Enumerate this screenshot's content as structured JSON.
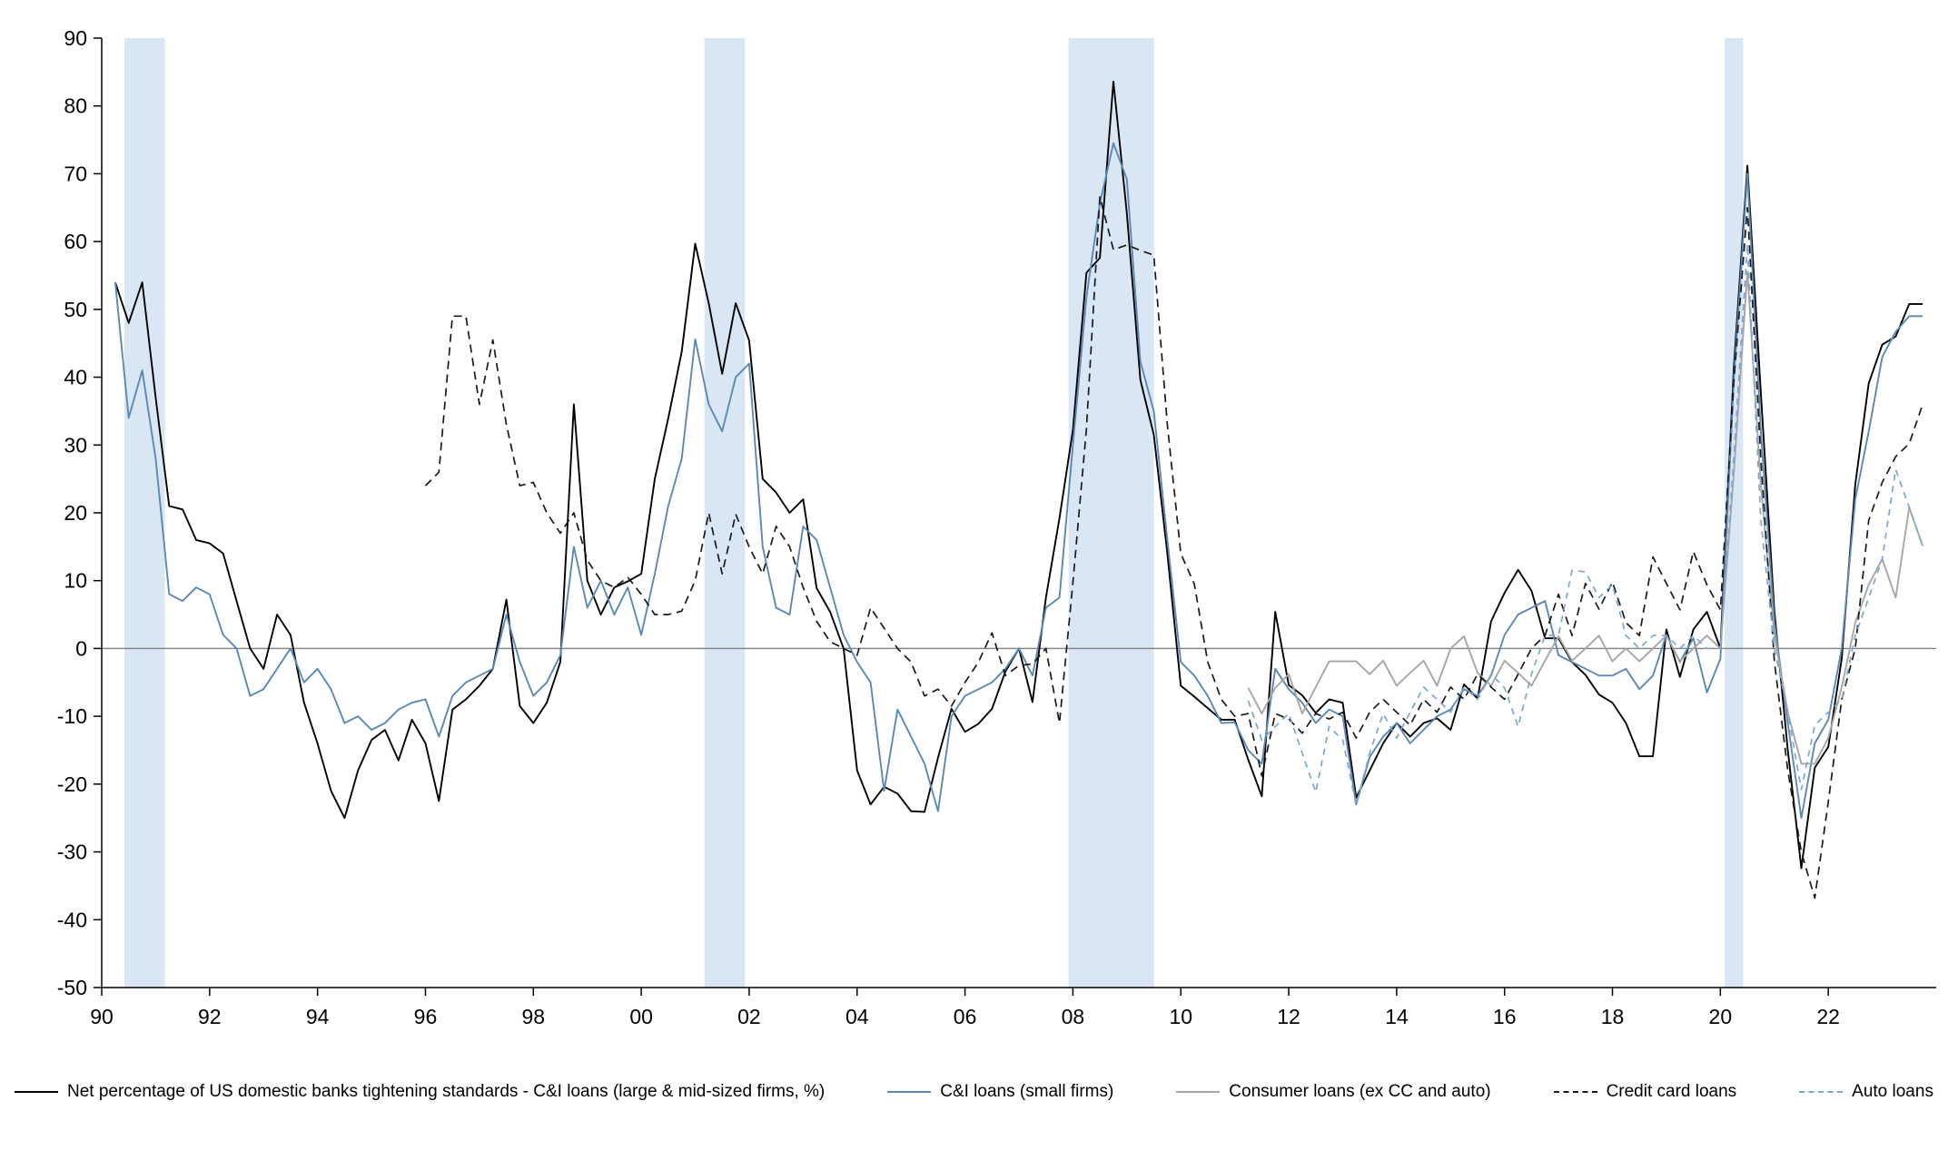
{
  "chart_data": {
    "type": "line",
    "title": "",
    "xlabel": "",
    "ylabel": "",
    "xlim": [
      1990,
      2024.0
    ],
    "ylim": [
      -50,
      90
    ],
    "grid": false,
    "legend_position": "bottom",
    "y_ticks": [
      90,
      80,
      70,
      60,
      50,
      40,
      30,
      20,
      10,
      0,
      -10,
      -20,
      -30,
      -40,
      -50
    ],
    "x_ticks": [
      {
        "label": "90",
        "year": 1990
      },
      {
        "label": "92",
        "year": 1992
      },
      {
        "label": "94",
        "year": 1994
      },
      {
        "label": "96",
        "year": 1996
      },
      {
        "label": "98",
        "year": 1998
      },
      {
        "label": "00",
        "year": 2000
      },
      {
        "label": "02",
        "year": 2002
      },
      {
        "label": "04",
        "year": 2004
      },
      {
        "label": "06",
        "year": 2006
      },
      {
        "label": "08",
        "year": 2008
      },
      {
        "label": "10",
        "year": 2010
      },
      {
        "label": "12",
        "year": 2012
      },
      {
        "label": "14",
        "year": 2014
      },
      {
        "label": "16",
        "year": 2016
      },
      {
        "label": "18",
        "year": 2018
      },
      {
        "label": "20",
        "year": 2020
      },
      {
        "label": "22",
        "year": 2022
      }
    ],
    "colors": {
      "recession_band": "#d9e6f4",
      "zero_line": "#808080",
      "axis": "#000000"
    },
    "recession_bands": [
      [
        1990.42,
        1991.17
      ],
      [
        2001.17,
        2001.92
      ],
      [
        2007.92,
        2009.5
      ],
      [
        2020.08,
        2020.42
      ]
    ],
    "series": [
      {
        "id": "ci-large",
        "name": "Net percentage of US domestic banks tightening standards - C&I loans (large & mid-sized firms, %)",
        "color": "#000000",
        "dash": null,
        "width": 1.9,
        "start": 1990.25,
        "step": 0.25,
        "values": [
          54,
          48,
          54,
          37,
          21,
          20.5,
          16,
          15.5,
          14,
          7,
          0,
          -3,
          5,
          2,
          -8,
          -14,
          -21,
          -25,
          -18,
          -13.5,
          -12,
          -16.5,
          -10.5,
          -14,
          -22.5,
          -9,
          -7.5,
          -5.5,
          -3,
          7.2,
          -8.5,
          -11,
          -8,
          -2,
          36,
          10,
          5,
          9,
          9.9,
          11,
          25,
          33.9,
          43.8,
          59.7,
          50.9,
          40.5,
          50.9,
          45.4,
          25,
          23,
          20,
          22,
          8.9,
          5.4,
          0,
          -18,
          -23,
          -20.4,
          -21.4,
          -24,
          -24.1,
          -16.1,
          -8.9,
          -12.3,
          -11.1,
          -8.9,
          -3.4,
          0,
          -7.9,
          7.5,
          19.2,
          32.2,
          55.4,
          57.6,
          83.6,
          64.2,
          39.6,
          31.5,
          14,
          -5.5,
          -7.1,
          -8.8,
          -10.5,
          -10.5,
          -16.4,
          -21.8,
          5.4,
          -5.4,
          -6.9,
          -9.5,
          -7.5,
          -8,
          -22,
          -18,
          -14,
          -11,
          -13,
          -11,
          -10.3,
          -12,
          -5.3,
          -7.4,
          4,
          8.2,
          11.6,
          8.5,
          1.5,
          1.5,
          -2,
          -3.9,
          -6.8,
          -8,
          -11,
          -15.9,
          -15.9,
          2.8,
          -4.2,
          2.8,
          5.4,
          0,
          41.5,
          71.2,
          37.7,
          5.5,
          -15,
          -32.4,
          -17.6,
          -14.5,
          -1.5,
          24.2,
          39.1,
          44.8,
          46,
          50.8,
          50.8
        ]
      },
      {
        "id": "ci-small",
        "name": "C&I loans (small firms)",
        "color": "#5b89b4",
        "dash": null,
        "width": 1.9,
        "start": 1990.25,
        "step": 0.25,
        "values": [
          54,
          34,
          41,
          28,
          8,
          7,
          9,
          8,
          2,
          0,
          -7,
          -6,
          -3,
          0,
          -5,
          -3,
          -6,
          -11,
          -10,
          -12,
          -11,
          -9,
          -8,
          -7.5,
          -13,
          -7,
          -5,
          -4,
          -3,
          5,
          -2,
          -7,
          -5,
          -1,
          15,
          6,
          10,
          5,
          9,
          2,
          11,
          21,
          28,
          45.6,
          36,
          32,
          40,
          42,
          15,
          6,
          5,
          18,
          16,
          9,
          2,
          -2,
          -5,
          -21,
          -9,
          -13,
          -17,
          -24,
          -10,
          -7,
          -6,
          -5,
          -3,
          0,
          -4,
          6,
          7.5,
          30,
          51.8,
          65.6,
          74.5,
          69.2,
          42.3,
          35,
          16,
          -2,
          -4,
          -7,
          -11,
          -10.9,
          -15,
          -17,
          -3,
          -6,
          -8,
          -11,
          -9,
          -10,
          -23,
          -16,
          -13,
          -11,
          -14,
          -12,
          -10,
          -9,
          -6,
          -7,
          -4,
          2,
          5,
          6,
          7,
          -1,
          -2,
          -3,
          -4,
          -4,
          -3,
          -6,
          -4,
          2,
          -2,
          1.5,
          -6.5,
          -1.5,
          39.7,
          70,
          32,
          4,
          -11,
          -25,
          -14,
          -10.5,
          0,
          22,
          32,
          43,
          46.7,
          49,
          49
        ]
      },
      {
        "id": "consumer-other",
        "name": "Consumer loans (ex CC and auto)",
        "color": "#a6a6a6",
        "dash": null,
        "width": 1.9,
        "start": 2011.25,
        "step": 0.25,
        "values": [
          -5.8,
          -9.6,
          -5.8,
          -3.8,
          -9.6,
          -5.7,
          -1.9,
          -1.9,
          -1.9,
          -3.8,
          -1.8,
          -5.5,
          -3.6,
          -1.8,
          -5.5,
          0,
          1.8,
          -3.6,
          -5.5,
          -1.8,
          -3.6,
          -5.5,
          -1.8,
          1.8,
          -1.8,
          0,
          1.9,
          -1.9,
          0,
          -1.9,
          0,
          1.9,
          -1.9,
          0,
          1.9,
          0,
          25.9,
          55.6,
          24.1,
          1.9,
          -9.4,
          -17,
          -17,
          -13.2,
          -5.7,
          3.8,
          9.4,
          13.2,
          7.5,
          20.8,
          15.1
        ]
      },
      {
        "id": "credit-card",
        "name": "Credit card loans",
        "color": "#1a1a1a",
        "dash": "9 6",
        "width": 1.7,
        "start": 1996.0,
        "step": 0.25,
        "values": [
          24,
          26,
          49,
          49,
          36,
          45.5,
          33,
          24,
          24.5,
          20,
          17,
          20,
          13,
          10,
          9,
          10.5,
          8,
          5,
          5,
          5.5,
          10,
          20,
          11,
          19.8,
          15,
          11,
          18,
          15,
          9,
          4,
          1,
          0,
          -1,
          6,
          3,
          0,
          -2,
          -7,
          -6,
          -8.5,
          -5,
          -2,
          2.3,
          -4,
          -2.5,
          -2.3,
          0,
          -11,
          9.7,
          32.4,
          66.6,
          58.8,
          59.5,
          58.7,
          58,
          33,
          14,
          9.5,
          -2,
          -7.5,
          -10,
          -9.6,
          -18.8,
          -9.6,
          -10.4,
          -12.5,
          -9.6,
          -10.4,
          -9.4,
          -13.2,
          -9.4,
          -7.5,
          -9.4,
          -11.3,
          -7.5,
          -9.4,
          -5.7,
          -7.5,
          -3.8,
          -5.7,
          -7.5,
          -3.8,
          0,
          1.9,
          8,
          1.9,
          9.6,
          5.8,
          9.8,
          3.8,
          1.9,
          13.5,
          9.6,
          5.7,
          14.3,
          9.4,
          5.7,
          39.4,
          65,
          28,
          -1.9,
          -18,
          -30,
          -36.8,
          -22.6,
          -7.5,
          0,
          18.9,
          24.5,
          28.3,
          30.2,
          36
        ]
      },
      {
        "id": "auto",
        "name": "Auto loans",
        "color": "#7ea6cf",
        "dash": "7 6",
        "width": 1.7,
        "start": 2011.25,
        "step": 0.25,
        "values": [
          -7.7,
          -13.5,
          -11.5,
          -9.6,
          -15.4,
          -21.2,
          -11.5,
          -13.5,
          -23.1,
          -15.4,
          -9.6,
          -13.2,
          -9.4,
          -5.7,
          -7.5,
          -9.4,
          -5.7,
          -7.5,
          -3.8,
          -5.8,
          -11.5,
          -3.8,
          1.9,
          1.9,
          11.5,
          11.3,
          7.5,
          9.4,
          1.9,
          0,
          1.9,
          1.9,
          0,
          1.9,
          0,
          0,
          28.3,
          59.6,
          18.9,
          0,
          -9.4,
          -20.8,
          -11.3,
          -9.4,
          -7.5,
          1.9,
          7.5,
          13.2,
          26.4,
          20.8,
          15.1
        ]
      }
    ]
  }
}
